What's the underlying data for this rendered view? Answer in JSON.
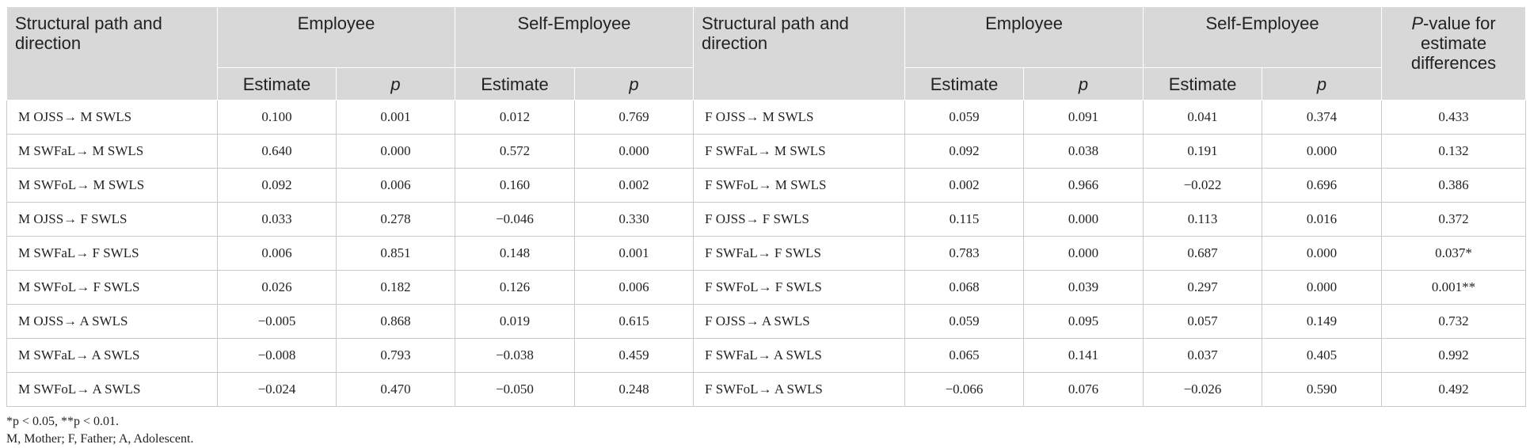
{
  "header": {
    "path_label": "Structural path and direction",
    "employee": "Employee",
    "self_employee": "Self-Employee",
    "pvalue_italic": "P",
    "pvalue_rest": "-value for estimate differences",
    "estimate": "Estimate",
    "p": "p"
  },
  "rows": [
    {
      "mpath": "M OJSS→  M SWLS",
      "me_est": "0.100",
      "me_p": "0.001",
      "ms_est": "0.012",
      "ms_p": "0.769",
      "fpath": "F OJSS→ M SWLS",
      "fe_est": "0.059",
      "fe_p": "0.091",
      "fs_est": "0.041",
      "fs_p": "0.374",
      "diff": "0.433"
    },
    {
      "mpath": "M SWFaL→ M SWLS",
      "me_est": "0.640",
      "me_p": "0.000",
      "ms_est": "0.572",
      "ms_p": "0.000",
      "fpath": "F SWFaL→ M SWLS",
      "fe_est": "0.092",
      "fe_p": "0.038",
      "fs_est": "0.191",
      "fs_p": "0.000",
      "diff": "0.132"
    },
    {
      "mpath": "M SWFoL→ M SWLS",
      "me_est": "0.092",
      "me_p": "0.006",
      "ms_est": "0.160",
      "ms_p": "0.002",
      "fpath": "F SWFoL→ M SWLS",
      "fe_est": "0.002",
      "fe_p": "0.966",
      "fs_est": "−0.022",
      "fs_p": "0.696",
      "diff": "0.386"
    },
    {
      "mpath": "M OJSS→ F SWLS",
      "me_est": "0.033",
      "me_p": "0.278",
      "ms_est": "−0.046",
      "ms_p": "0.330",
      "fpath": "F OJSS→ F SWLS",
      "fe_est": "0.115",
      "fe_p": "0.000",
      "fs_est": "0.113",
      "fs_p": "0.016",
      "diff": "0.372"
    },
    {
      "mpath": "M SWFaL→ F SWLS",
      "me_est": "0.006",
      "me_p": "0.851",
      "ms_est": "0.148",
      "ms_p": "0.001",
      "fpath": "F SWFaL→ F SWLS",
      "fe_est": "0.783",
      "fe_p": "0.000",
      "fs_est": "0.687",
      "fs_p": "0.000",
      "diff": "0.037*"
    },
    {
      "mpath": "M SWFoL→ F SWLS",
      "me_est": "0.026",
      "me_p": "0.182",
      "ms_est": "0.126",
      "ms_p": "0.006",
      "fpath": "F SWFoL→ F SWLS",
      "fe_est": "0.068",
      "fe_p": "0.039",
      "fs_est": "0.297",
      "fs_p": "0.000",
      "diff": "0.001**"
    },
    {
      "mpath": "M OJSS→ A SWLS",
      "me_est": "−0.005",
      "me_p": "0.868",
      "ms_est": "0.019",
      "ms_p": "0.615",
      "fpath": "F OJSS→ A SWLS",
      "fe_est": "0.059",
      "fe_p": "0.095",
      "fs_est": "0.057",
      "fs_p": "0.149",
      "diff": "0.732"
    },
    {
      "mpath": "M SWFaL→ A SWLS",
      "me_est": "−0.008",
      "me_p": "0.793",
      "ms_est": "−0.038",
      "ms_p": "0.459",
      "fpath": "F SWFaL→ A SWLS",
      "fe_est": "0.065",
      "fe_p": "0.141",
      "fs_est": "0.037",
      "fs_p": "0.405",
      "diff": "0.992"
    },
    {
      "mpath": "M SWFoL→ A SWLS",
      "me_est": "−0.024",
      "me_p": "0.470",
      "ms_est": "−0.050",
      "ms_p": "0.248",
      "fpath": "F SWFoL→ A SWLS",
      "fe_est": "−0.066",
      "fe_p": "0.076",
      "fs_est": "−0.026",
      "fs_p": "0.590",
      "diff": "0.492"
    }
  ],
  "notes": {
    "significance": "*p < 0.05, **p < 0.01.",
    "abbreviations": "M, Mother; F, Father; A, Adolescent."
  }
}
